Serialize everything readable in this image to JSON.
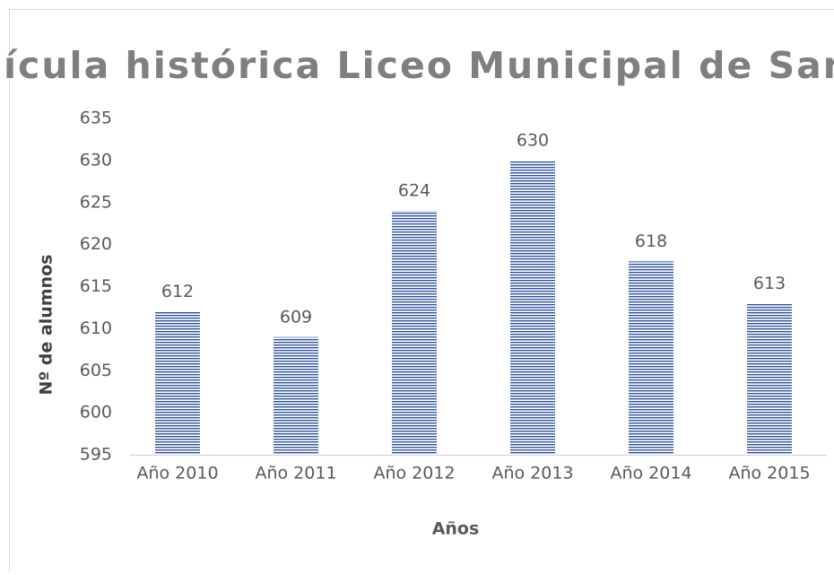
{
  "chart_data": {
    "type": "bar",
    "title": "ícula histórica Liceo Municipal de San",
    "x_label": "Años",
    "y_label": "Nº de alumnos",
    "categories": [
      "Año 2010",
      "Año 2011",
      "Año 2012",
      "Año 2013",
      "Año 2014",
      "Año 2015"
    ],
    "values": [
      612,
      609,
      624,
      630,
      618,
      613
    ],
    "color": "#2f5597",
    "ylim": [
      595,
      635
    ],
    "yticks": [
      595,
      600,
      605,
      610,
      615,
      620,
      625,
      630,
      635
    ],
    "grid": false
  }
}
